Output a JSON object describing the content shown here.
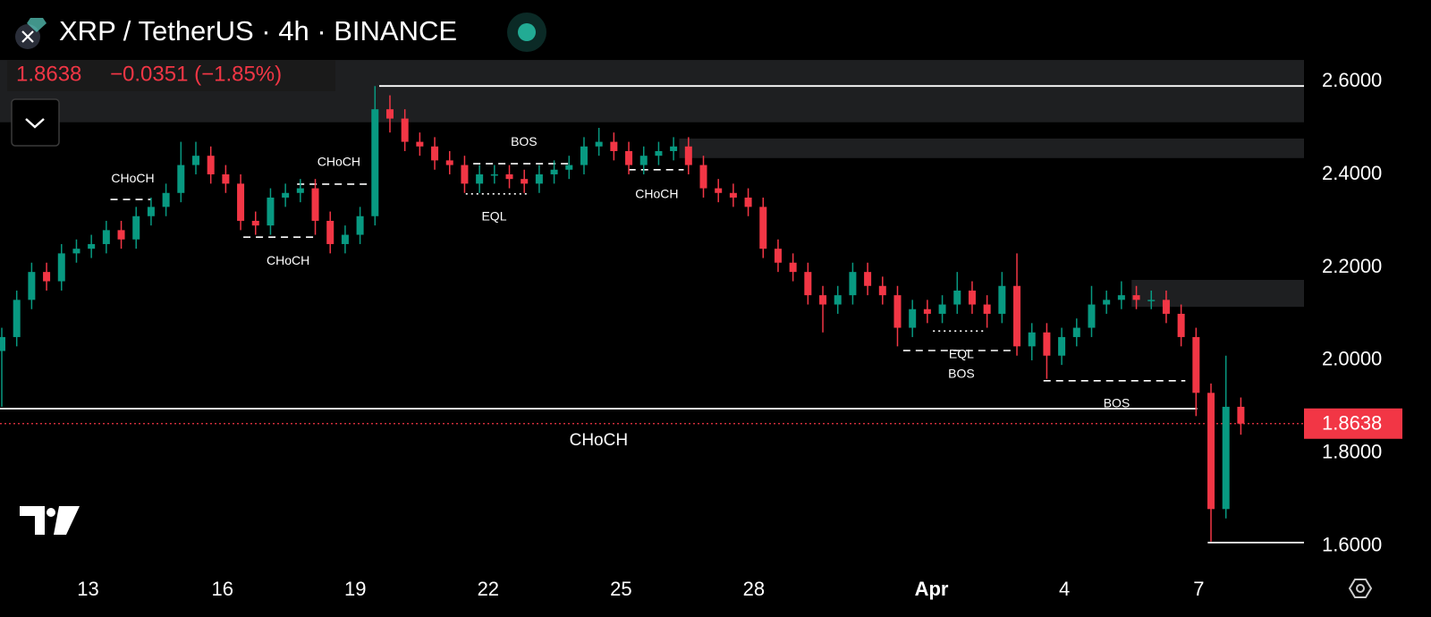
{
  "chart_data": {
    "type": "candlestick",
    "title": "XRP / TetherUS · 4h · BINANCE",
    "change_label": "−0.0351 (−1.85%)",
    "up_color": "#089981",
    "down_color": "#f23645",
    "xlim": [
      0,
      87.35
    ],
    "ylim": [
      1.544,
      2.65
    ],
    "yticks": [
      {
        "value": 2.6,
        "label": "2.6000"
      },
      {
        "value": 2.4,
        "label": "2.4000"
      },
      {
        "value": 2.2,
        "label": "2.2000"
      },
      {
        "value": 2.0,
        "label": "2.0000"
      },
      {
        "value": 1.8,
        "label": "1.8000"
      },
      {
        "value": 1.6,
        "label": "1.6000"
      }
    ],
    "xticks": [
      {
        "value": 5.9,
        "label": "13"
      },
      {
        "value": 14.9,
        "label": "16"
      },
      {
        "value": 23.8,
        "label": "19"
      },
      {
        "value": 32.7,
        "label": "22"
      },
      {
        "value": 41.6,
        "label": "25"
      },
      {
        "value": 50.5,
        "label": "28"
      },
      {
        "value": 62.4,
        "label": "Apr"
      },
      {
        "value": 71.3,
        "label": "4"
      },
      {
        "value": 80.3,
        "label": "7"
      }
    ],
    "open": [
      2.02,
      2.05,
      2.13,
      2.19,
      2.17,
      2.23,
      2.24,
      2.25,
      2.28,
      2.26,
      2.31,
      2.33,
      2.36,
      2.42,
      2.44,
      2.4,
      2.38,
      2.3,
      2.29,
      2.35,
      2.36,
      2.37,
      2.3,
      2.25,
      2.27,
      2.31,
      2.54,
      2.52,
      2.47,
      2.46,
      2.43,
      2.42,
      2.38,
      2.4,
      2.4,
      2.39,
      2.38,
      2.4,
      2.41,
      2.42,
      2.46,
      2.47,
      2.45,
      2.42,
      2.44,
      2.45,
      2.46,
      2.42,
      2.37,
      2.36,
      2.35,
      2.33,
      2.24,
      2.21,
      2.19,
      2.14,
      2.12,
      2.14,
      2.19,
      2.16,
      2.14,
      2.07,
      2.11,
      2.1,
      2.12,
      2.15,
      2.12,
      2.1,
      2.16,
      2.03,
      2.06,
      2.01,
      2.05,
      2.07,
      2.12,
      2.13,
      2.14,
      2.13,
      2.13,
      2.1,
      2.05,
      1.93,
      1.68,
      1.9
    ],
    "high": [
      2.07,
      2.15,
      2.21,
      2.21,
      2.25,
      2.26,
      2.27,
      2.3,
      2.3,
      2.33,
      2.35,
      2.38,
      2.47,
      2.47,
      2.46,
      2.42,
      2.4,
      2.32,
      2.37,
      2.38,
      2.39,
      2.39,
      2.32,
      2.29,
      2.33,
      2.59,
      2.57,
      2.54,
      2.49,
      2.48,
      2.45,
      2.44,
      2.42,
      2.42,
      2.42,
      2.41,
      2.42,
      2.43,
      2.44,
      2.48,
      2.5,
      2.49,
      2.47,
      2.46,
      2.47,
      2.48,
      2.48,
      2.44,
      2.39,
      2.38,
      2.37,
      2.35,
      2.26,
      2.23,
      2.21,
      2.16,
      2.16,
      2.21,
      2.21,
      2.18,
      2.16,
      2.13,
      2.13,
      2.14,
      2.19,
      2.17,
      2.14,
      2.19,
      2.23,
      2.08,
      2.08,
      2.07,
      2.09,
      2.16,
      2.15,
      2.17,
      2.16,
      2.15,
      2.15,
      2.12,
      2.07,
      1.95,
      2.01,
      1.92
    ],
    "low": [
      1.9,
      2.03,
      2.11,
      2.15,
      2.15,
      2.21,
      2.22,
      2.23,
      2.24,
      2.24,
      2.29,
      2.31,
      2.34,
      2.4,
      2.38,
      2.36,
      2.28,
      2.27,
      2.27,
      2.33,
      2.34,
      2.27,
      2.23,
      2.23,
      2.25,
      2.29,
      2.49,
      2.45,
      2.44,
      2.41,
      2.4,
      2.36,
      2.36,
      2.38,
      2.37,
      2.36,
      2.36,
      2.38,
      2.39,
      2.4,
      2.44,
      2.43,
      2.4,
      2.4,
      2.42,
      2.43,
      2.4,
      2.35,
      2.34,
      2.33,
      2.31,
      2.22,
      2.19,
      2.17,
      2.12,
      2.06,
      2.1,
      2.12,
      2.14,
      2.12,
      2.03,
      2.05,
      2.08,
      2.08,
      2.1,
      2.1,
      2.07,
      2.08,
      2.01,
      2.0,
      1.96,
      1.99,
      2.03,
      2.05,
      2.1,
      2.11,
      2.11,
      2.11,
      2.08,
      2.03,
      1.88,
      1.61,
      1.66,
      1.84
    ],
    "close": [
      2.05,
      2.13,
      2.19,
      2.17,
      2.23,
      2.24,
      2.25,
      2.28,
      2.26,
      2.31,
      2.33,
      2.36,
      2.42,
      2.44,
      2.4,
      2.38,
      2.3,
      2.29,
      2.35,
      2.36,
      2.37,
      2.3,
      2.25,
      2.27,
      2.31,
      2.54,
      2.52,
      2.47,
      2.46,
      2.43,
      2.42,
      2.38,
      2.4,
      2.4,
      2.39,
      2.38,
      2.4,
      2.41,
      2.42,
      2.46,
      2.47,
      2.45,
      2.42,
      2.44,
      2.45,
      2.46,
      2.42,
      2.37,
      2.36,
      2.35,
      2.33,
      2.24,
      2.21,
      2.19,
      2.14,
      2.12,
      2.14,
      2.19,
      2.16,
      2.14,
      2.07,
      2.11,
      2.1,
      2.12,
      2.15,
      2.12,
      2.1,
      2.16,
      2.03,
      2.06,
      2.01,
      2.05,
      2.07,
      2.12,
      2.13,
      2.14,
      2.13,
      2.13,
      2.1,
      2.05,
      1.93,
      1.68,
      1.9,
      1.8638
    ],
    "zones": [
      {
        "x": [
          0,
          87.35
        ],
        "y": [
          2.512,
          2.646
        ]
      },
      {
        "x": [
          45.5,
          87.35
        ],
        "y": [
          2.435,
          2.477
        ]
      },
      {
        "x": [
          75.8,
          87.35
        ],
        "y": [
          2.115,
          2.173
        ]
      }
    ],
    "levels": [
      {
        "y": 2.59,
        "x": [
          25.4,
          87.35
        ],
        "style": "solid"
      },
      {
        "y": 1.896,
        "x": [
          0,
          80.2
        ],
        "style": "solid"
      },
      {
        "y": 1.608,
        "x": [
          80.9,
          87.35
        ],
        "style": "solid"
      },
      {
        "y": 2.346,
        "x": [
          7.4,
          10.1
        ],
        "style": "dashed"
      },
      {
        "y": 2.265,
        "x": [
          16.3,
          21.2
        ],
        "style": "dashed"
      },
      {
        "y": 2.379,
        "x": [
          19.9,
          24.7
        ],
        "style": "dashed"
      },
      {
        "y": 2.423,
        "x": [
          31.7,
          38.3
        ],
        "style": "dashed"
      },
      {
        "y": 2.358,
        "x": [
          31.2,
          35.3
        ],
        "style": "dotted"
      },
      {
        "y": 2.41,
        "x": [
          42.1,
          45.8
        ],
        "style": "dashed"
      },
      {
        "y": 2.021,
        "x": [
          60.5,
          68.0
        ],
        "style": "dashed"
      },
      {
        "y": 2.063,
        "x": [
          62.5,
          65.9
        ],
        "style": "dotted"
      },
      {
        "y": 1.956,
        "x": [
          69.9,
          79.4
        ],
        "style": "dashed"
      }
    ],
    "labels": [
      {
        "text": "CHoCH",
        "x": 8.9,
        "y": 2.39
      },
      {
        "text": "CHoCH",
        "x": 19.3,
        "y": 2.213
      },
      {
        "text": "CHoCH",
        "x": 22.7,
        "y": 2.425
      },
      {
        "text": "BOS",
        "x": 35.1,
        "y": 2.469
      },
      {
        "text": "EQL",
        "x": 33.1,
        "y": 2.308
      },
      {
        "text": "CHoCH",
        "x": 44.0,
        "y": 2.356
      },
      {
        "text": "BOS",
        "x": 64.4,
        "y": 1.969
      },
      {
        "text": "EQL",
        "x": 64.4,
        "y": 2.012
      },
      {
        "text": "BOS",
        "x": 74.8,
        "y": 1.906
      }
    ],
    "main_label": {
      "text": "CHoCH",
      "x": 40.1,
      "y": 1.827
    }
  }
}
